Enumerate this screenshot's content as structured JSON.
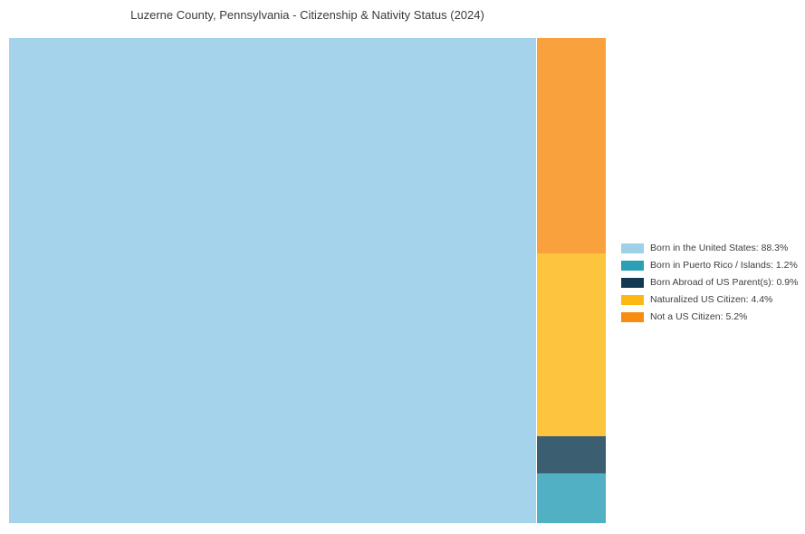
{
  "chart_data": {
    "type": "treemap",
    "title": "Luzerne County, Pennsylvania - Citizenship & Nativity Status (2024)",
    "items": [
      {
        "label": "Born in the United States",
        "value": 88.3,
        "tile_color": "#a5d3eb",
        "legend_color": "#9ed0e8"
      },
      {
        "label": "Born in Puerto Rico / Islands",
        "value": 1.2,
        "tile_color": "#51b0c3",
        "legend_color": "#2b9fb6"
      },
      {
        "label": "Born Abroad of US Parent(s)",
        "value": 0.9,
        "tile_color": "#3c5e71",
        "legend_color": "#113a52"
      },
      {
        "label": "Naturalized US Citizen",
        "value": 4.4,
        "tile_color": "#fdc53e",
        "legend_color": "#fdb813"
      },
      {
        "label": "Not a US Citizen",
        "value": 5.2,
        "tile_color": "#f9a13d",
        "legend_color": "#f78c12"
      }
    ],
    "layout": {
      "main_tile_label": "Born in the United States",
      "side_column_top_to_bottom": [
        "Not a US Citizen",
        "Naturalized US Citizen",
        "Born Abroad of US Parent(s)",
        "Born in Puerto Rico / Islands"
      ],
      "legend_position": "right-center",
      "background": "#ffffff",
      "grid": false
    }
  },
  "legend": {
    "entries": [
      {
        "label": "Born in the United States: 88.3%",
        "color": "#9ed0e8"
      },
      {
        "label": "Born in Puerto Rico / Islands: 1.2%",
        "color": "#2b9fb6"
      },
      {
        "label": "Born Abroad of US Parent(s): 0.9%",
        "color": "#113a52"
      },
      {
        "label": "Naturalized US Citizen: 4.4%",
        "color": "#fdb813"
      },
      {
        "label": "Not a US Citizen: 5.2%",
        "color": "#f78c12"
      }
    ]
  }
}
